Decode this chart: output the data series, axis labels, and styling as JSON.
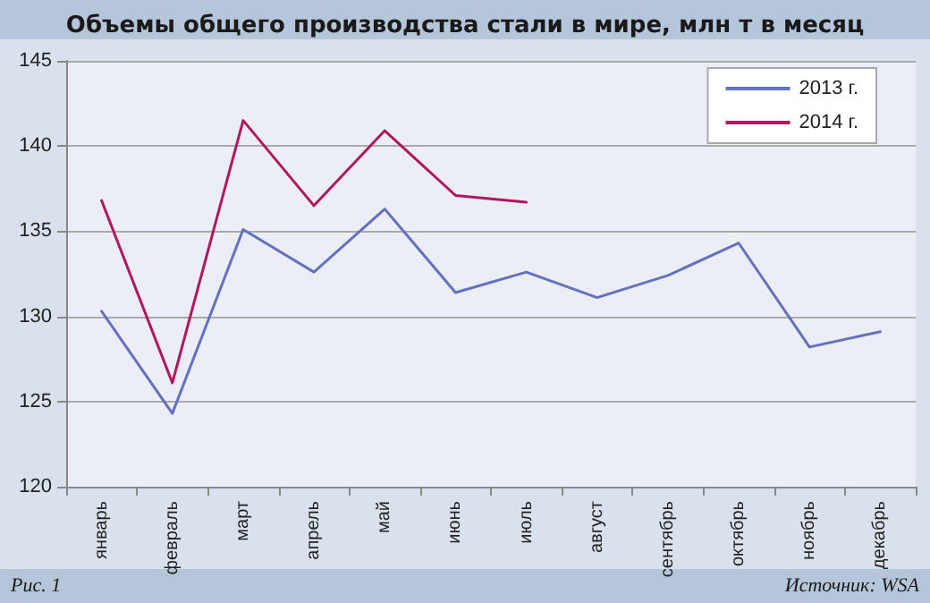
{
  "chart_data": {
    "type": "line",
    "title": "Объемы общего производства стали в мире, млн т в месяц",
    "categories": [
      "январь",
      "февраль",
      "март",
      "апрель",
      "май",
      "июнь",
      "июль",
      "август",
      "сентябрь",
      "октябрь",
      "ноябрь",
      "декабрь"
    ],
    "series": [
      {
        "name": "2013 г.",
        "color": "#6470c0",
        "values": [
          130.3,
          124.3,
          135.1,
          132.6,
          136.3,
          131.4,
          132.6,
          131.1,
          132.4,
          134.3,
          128.2,
          129.1
        ]
      },
      {
        "name": "2014 г.",
        "color": "#b0175e",
        "values": [
          136.8,
          126.1,
          141.5,
          136.5,
          140.9,
          137.1,
          136.7,
          null,
          null,
          null,
          null,
          null
        ]
      }
    ],
    "ylim": [
      120,
      145
    ],
    "yticks": [
      120,
      125,
      130,
      135,
      140,
      145
    ],
    "grid": "y",
    "legend": "top right",
    "marker": "none",
    "line_style": "solid",
    "annotations": [
      "Рис. 1",
      "Источник: WSA"
    ]
  }
}
